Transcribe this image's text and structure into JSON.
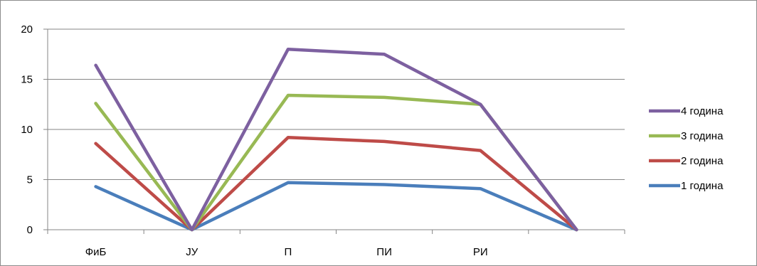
{
  "chart_data": {
    "type": "line",
    "categories": [
      "ФиБ",
      "ЈУ",
      "П",
      "ПИ",
      "РИ",
      ""
    ],
    "series": [
      {
        "name": "1 година",
        "values": [
          4.3,
          0,
          4.7,
          4.5,
          4.1,
          0
        ],
        "color": "#4a7ebb"
      },
      {
        "name": "2 година",
        "values": [
          8.6,
          0,
          9.2,
          8.8,
          7.9,
          0
        ],
        "color": "#be4b48"
      },
      {
        "name": "3 година",
        "values": [
          12.6,
          0,
          13.4,
          13.2,
          12.5,
          0
        ],
        "color": "#98b954"
      },
      {
        "name": "4 година",
        "values": [
          16.4,
          0,
          18.0,
          17.5,
          12.5,
          0
        ],
        "color": "#7d60a0"
      }
    ],
    "yticks": [
      "0",
      "5",
      "10",
      "15",
      "20"
    ],
    "ylim": [
      0,
      20
    ],
    "grid": true,
    "legend_position": "right",
    "legend_order": [
      "4 година",
      "3 година",
      "2 година",
      "1 година"
    ]
  }
}
